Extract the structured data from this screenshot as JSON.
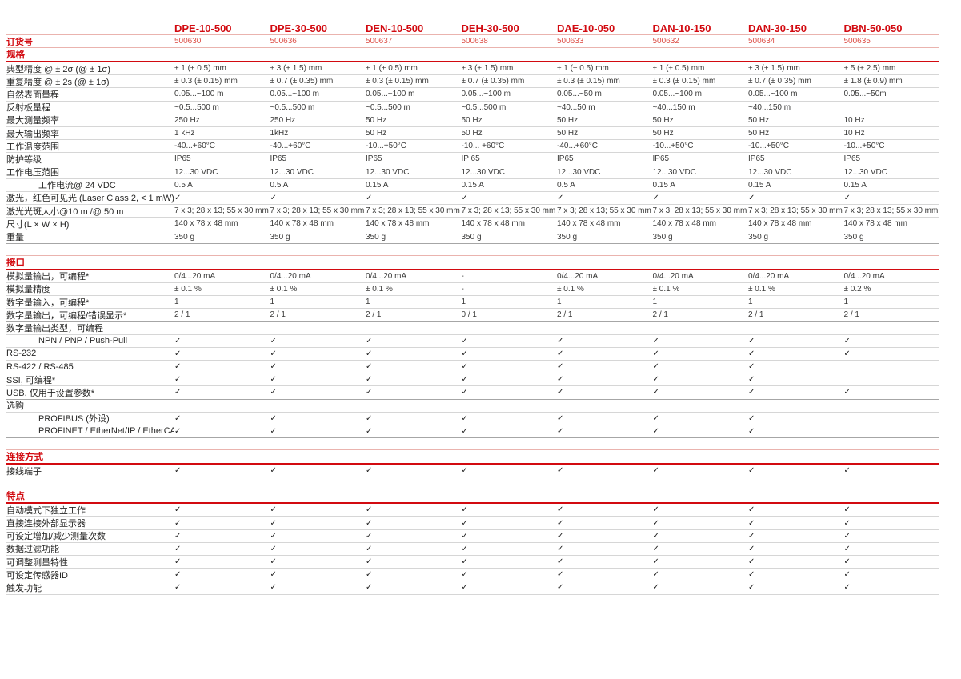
{
  "colors": {
    "brand_red": "#d20a10",
    "order_number_red": "#dd4f47",
    "pink_line": "#eab3ae",
    "row_line": "#d6d6d6",
    "strong_line": "#a6a6a6",
    "label_text": "#262625",
    "value_text": "#3a3a39"
  },
  "check_glyph": "✓",
  "order_row": {
    "label": "订货号"
  },
  "columns": [
    {
      "model": "DPE-10-500",
      "order_no": "500630"
    },
    {
      "model": "DPE-30-500",
      "order_no": "500636"
    },
    {
      "model": "DEN-10-500",
      "order_no": "500637"
    },
    {
      "model": "DEH-30-500",
      "order_no": "500638"
    },
    {
      "model": "DAE-10-050",
      "order_no": "500633"
    },
    {
      "model": "DAN-10-150",
      "order_no": "500632"
    },
    {
      "model": "DAN-30-150",
      "order_no": "500634"
    },
    {
      "model": "DBN-50-050",
      "order_no": "500635"
    }
  ],
  "sections": [
    {
      "title": "规格",
      "rows": [
        {
          "label": "典型精度 @ ± 2σ (@ ± 1σ)",
          "values": [
            "± 1 (± 0.5) mm",
            "± 3 (± 1.5) mm",
            "± 1 (± 0.5) mm",
            "± 3 (± 1.5) mm",
            "± 1 (± 0.5) mm",
            "± 1 (± 0.5) mm",
            "± 3 (± 1.5) mm",
            "± 5 (± 2.5) mm"
          ]
        },
        {
          "label": "重复精度 @ ± 2s (@ ± 1σ)",
          "values": [
            "± 0.3 (± 0.15) mm",
            "± 0.7 (± 0.35) mm",
            "± 0.3 (± 0.15) mm",
            "± 0.7 (± 0.35) mm",
            "± 0.3 (± 0.15) mm",
            "± 0.3 (± 0.15) mm",
            "± 0.7 (± 0.35) mm",
            "± 1.8 (± 0.9) mm"
          ]
        },
        {
          "label": "自然表面量程",
          "values": [
            "0.05...~100 m",
            "0.05...~100 m",
            "0.05...~100 m",
            "0.05...~100 m",
            "0.05...~50 m",
            "0.05...~100 m",
            "0.05...~100 m",
            "0.05...~50m"
          ]
        },
        {
          "label": "反射板量程",
          "values": [
            "~0.5...500 m",
            "~0.5...500 m",
            "~0.5...500 m",
            "~0.5...500 m",
            "~40...50 m",
            "~40...150 m",
            "~40...150 m",
            ""
          ]
        },
        {
          "label": "最大测量频率",
          "values": [
            "250 Hz",
            "250 Hz",
            "50 Hz",
            "50 Hz",
            "50 Hz",
            "50 Hz",
            "50 Hz",
            "10 Hz"
          ]
        },
        {
          "label": "最大输出频率",
          "values": [
            "1 kHz",
            "1kHz",
            "50 Hz",
            "50 Hz",
            "50 Hz",
            "50 Hz",
            "50 Hz",
            "10 Hz"
          ]
        },
        {
          "label": "工作温度范围",
          "values": [
            "-40...+60°C",
            "-40...+60°C",
            "-10...+50°C",
            "-10... +60°C",
            "-40...+60°C",
            "-10...+50°C",
            "-10...+50°C",
            "-10...+50°C"
          ]
        },
        {
          "label": "防护等级",
          "values": [
            "IP65",
            "IP65",
            "IP65",
            "IP 65",
            "IP65",
            "IP65",
            "IP65",
            "IP65"
          ]
        },
        {
          "label": "工作电压范围",
          "values": [
            "12...30 VDC",
            "12...30 VDC",
            "12...30 VDC",
            "12...30 VDC",
            "12...30 VDC",
            "12...30 VDC",
            "12...30 VDC",
            "12...30 VDC"
          ]
        },
        {
          "label": "工作电流@ 24 VDC",
          "indent": true,
          "values": [
            "0.5 A",
            "0.5 A",
            "0.15 A",
            "0.15 A",
            "0.5 A",
            "0.15 A",
            "0.15 A",
            "0.15 A"
          ]
        },
        {
          "label": "激光，红色可见光 (Laser Class 2, < 1 mW)",
          "values": [
            "✓",
            "✓",
            "✓",
            "✓",
            "✓",
            "✓",
            "✓",
            "✓"
          ]
        },
        {
          "label": "激光光斑大小@10 m /@ 50 m",
          "values": [
            "7 x 3; 28 x 13; 55 x 30 mm",
            "7 x 3; 28 x 13; 55 x 30 mm",
            "7 x 3; 28 x 13; 55 x 30 mm",
            "7 x 3; 28 x 13; 55 x 30 mm",
            "7 x 3; 28 x 13; 55 x 30 mm",
            "7 x 3; 28 x 13; 55 x 30 mm",
            "7 x 3; 28 x 13; 55 x 30 mm",
            "7 x 3; 28 x 13; 55 x 30 mm"
          ]
        },
        {
          "label": "尺寸(L × W × H)",
          "values": [
            "140 x 78 x 48 mm",
            "140 x 78 x 48 mm",
            "140 x 78 x 48 mm",
            "140 x 78 x 48 mm",
            "140 x 78 x 48 mm",
            "140 x 78 x 48 mm",
            "140 x 78 x 48 mm",
            "140 x 78 x 48 mm"
          ]
        },
        {
          "label": "重量",
          "divider": true,
          "values": [
            "350 g",
            "350 g",
            "350 g",
            "350 g",
            "350 g",
            "350 g",
            "350 g",
            "350 g"
          ]
        }
      ]
    },
    {
      "title": "接口",
      "rows": [
        {
          "label": "模拟量输出，可编程*",
          "values": [
            "0/4...20 mA",
            "0/4...20 mA",
            "0/4...20 mA",
            "-",
            "0/4...20 mA",
            "0/4...20 mA",
            "0/4...20 mA",
            "0/4...20 mA"
          ]
        },
        {
          "label": "模拟量精度",
          "values": [
            "± 0.1 %",
            "± 0.1 %",
            "± 0.1 %",
            "-",
            "± 0.1 %",
            "± 0.1 %",
            "± 0.1 %",
            "± 0.2 %"
          ]
        },
        {
          "label": "数字量输入，可编程*",
          "values": [
            "1",
            "1",
            "1",
            "1",
            "1",
            "1",
            "1",
            "1"
          ]
        },
        {
          "label": "数字量输出，可编程/错误显示*",
          "divider": true,
          "values": [
            "2 / 1",
            "2 / 1",
            "2 / 1",
            "0 / 1",
            "2 / 1",
            "2 / 1",
            "2 / 1",
            "2 / 1"
          ]
        },
        {
          "label": "数字量输出类型，可编程",
          "subheader": true,
          "values": [
            "",
            "",
            "",
            "",
            "",
            "",
            "",
            ""
          ]
        },
        {
          "label": "NPN / PNP / Push-Pull",
          "indent": true,
          "values": [
            "✓",
            "✓",
            "✓",
            "✓",
            "✓",
            "✓",
            "✓",
            "✓"
          ]
        },
        {
          "label": "RS-232",
          "values": [
            "✓",
            "✓",
            "✓",
            "✓",
            "✓",
            "✓",
            "✓",
            "✓"
          ]
        },
        {
          "label": "RS-422 / RS-485",
          "values": [
            "✓",
            "✓",
            "✓",
            "✓",
            "✓",
            "✓",
            "✓",
            ""
          ]
        },
        {
          "label": "SSI, 可编程*",
          "values": [
            "✓",
            "✓",
            "✓",
            "✓",
            "✓",
            "✓",
            "✓",
            ""
          ]
        },
        {
          "label": "USB, 仅用于设置参数*",
          "divider": true,
          "values": [
            "✓",
            "✓",
            "✓",
            "✓",
            "✓",
            "✓",
            "✓",
            "✓"
          ]
        },
        {
          "label": "选购",
          "subheader": true,
          "values": [
            "",
            "",
            "",
            "",
            "",
            "",
            "",
            ""
          ]
        },
        {
          "label": "PROFIBUS (外设)",
          "indent": true,
          "values": [
            "✓",
            "✓",
            "✓",
            "✓",
            "✓",
            "✓",
            "✓",
            ""
          ]
        },
        {
          "label": "PROFINET / EtherNet/IP / EtherCAT",
          "indent": true,
          "divider": true,
          "values": [
            "✓",
            "✓",
            "✓",
            "✓",
            "✓",
            "✓",
            "✓",
            ""
          ]
        }
      ]
    },
    {
      "title": "连接方式",
      "rows": [
        {
          "label": "接线端子",
          "values": [
            "✓",
            "✓",
            "✓",
            "✓",
            "✓",
            "✓",
            "✓",
            "✓"
          ]
        }
      ]
    },
    {
      "title": "特点",
      "rows": [
        {
          "label": "自动模式下独立工作",
          "values": [
            "✓",
            "✓",
            "✓",
            "✓",
            "✓",
            "✓",
            "✓",
            "✓"
          ]
        },
        {
          "label": "直接连接外部显示器",
          "values": [
            "✓",
            "✓",
            "✓",
            "✓",
            "✓",
            "✓",
            "✓",
            "✓"
          ]
        },
        {
          "label": "可设定增加/减少测量次数",
          "values": [
            "✓",
            "✓",
            "✓",
            "✓",
            "✓",
            "✓",
            "✓",
            "✓"
          ]
        },
        {
          "label": "数据过滤功能",
          "values": [
            "✓",
            "✓",
            "✓",
            "✓",
            "✓",
            "✓",
            "✓",
            "✓"
          ]
        },
        {
          "label": "可调整测量特性",
          "values": [
            "✓",
            "✓",
            "✓",
            "✓",
            "✓",
            "✓",
            "✓",
            "✓"
          ]
        },
        {
          "label": "可设定传感器ID",
          "values": [
            "✓",
            "✓",
            "✓",
            "✓",
            "✓",
            "✓",
            "✓",
            "✓"
          ]
        },
        {
          "label": "触发功能",
          "values": [
            "✓",
            "✓",
            "✓",
            "✓",
            "✓",
            "✓",
            "✓",
            "✓"
          ]
        }
      ]
    }
  ]
}
